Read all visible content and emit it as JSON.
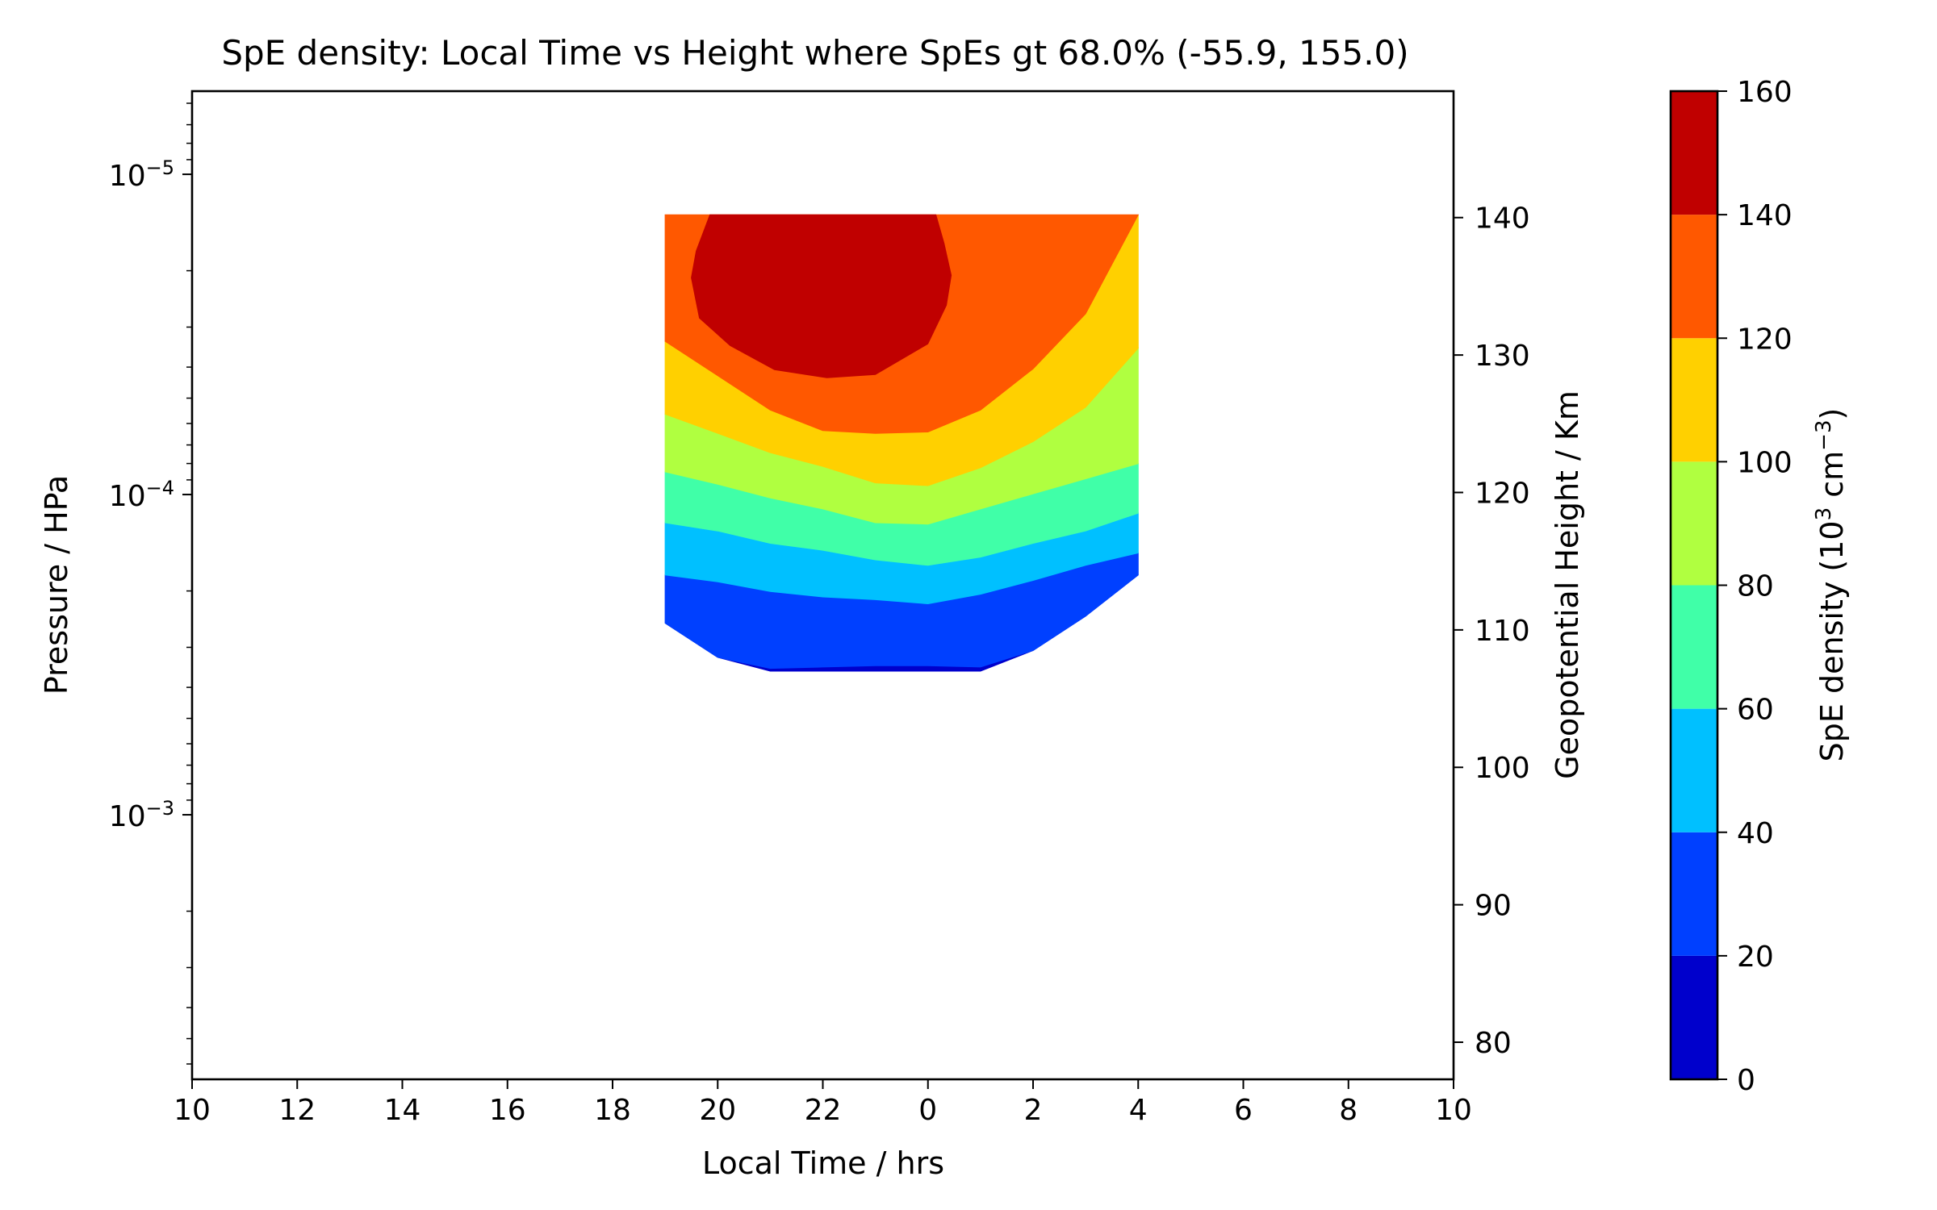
{
  "chart_data": {
    "type": "contourf",
    "title": "SpE density: Local Time vs Height where SpEs gt 68.0%  (-55.9, 155.0)",
    "xlabel": "Local Time / hrs",
    "ylabel_left": "Pressure / HPa",
    "ylabel_right": "Geopotential Height / Km",
    "x_ticks": [
      "10",
      "12",
      "14",
      "16",
      "18",
      "20",
      "22",
      "0",
      "2",
      "4",
      "6",
      "8",
      "10"
    ],
    "y_left_ticks": [
      {
        "base": "10",
        "exp": "−5",
        "value": 1e-05
      },
      {
        "base": "10",
        "exp": "−4",
        "value": 0.0001
      },
      {
        "base": "10",
        "exp": "−3",
        "value": 0.001
      }
    ],
    "y_left_scale": "log",
    "y_left_lim": [
      0.0067,
      5.5e-06
    ],
    "y_right_ticks": [
      80,
      90,
      100,
      110,
      120,
      130,
      140
    ],
    "y_right_lim": [
      77.3,
      149.2
    ],
    "colorbar": {
      "label_prefix": "SpE density (10",
      "label_exp1": "3",
      "label_mid": " cm",
      "label_exp2": "−3",
      "label_suffix": ")",
      "levels": [
        0,
        20,
        40,
        60,
        80,
        100,
        120,
        140,
        160
      ],
      "colors": [
        "#0000cc",
        "#0040ff",
        "#00c0ff",
        "#40ffa8",
        "#b0ff40",
        "#ffd000",
        "#ff5800",
        "#c00000"
      ]
    },
    "grid": false,
    "contour_bands": [
      {
        "range": [
          0,
          20
        ],
        "color": "#0000cc",
        "lt": [
          "19",
          "20",
          "21",
          "22",
          "23",
          "0",
          "1",
          "2",
          "3",
          "4"
        ],
        "lower_height_km": [
          110.5,
          108.0,
          107.0,
          107.0,
          107.0,
          107.0,
          107.0,
          108.5,
          111.0,
          114.0
        ],
        "upper_height_km": [
          110.5,
          108.0,
          107.2,
          107.3,
          107.4,
          107.4,
          107.3,
          108.5,
          111.0,
          114.0
        ]
      },
      {
        "range": [
          20,
          40
        ],
        "color": "#0040ff",
        "lt": [
          "19",
          "20",
          "21",
          "22",
          "23",
          "0",
          "1",
          "2",
          "3",
          "4"
        ],
        "lower_height_km": [
          110.5,
          108.0,
          107.2,
          107.3,
          107.4,
          107.4,
          107.3,
          108.5,
          111.0,
          114.0
        ],
        "upper_height_km": [
          114.0,
          113.5,
          112.8,
          112.4,
          112.2,
          111.9,
          112.6,
          113.6,
          114.7,
          115.6
        ]
      },
      {
        "range": [
          40,
          60
        ],
        "color": "#00c0ff",
        "lt": [
          "19",
          "20",
          "21",
          "22",
          "23",
          "0",
          "1",
          "2",
          "3",
          "4"
        ],
        "lower_height_km": [
          114.0,
          113.5,
          112.8,
          112.4,
          112.2,
          111.9,
          112.6,
          113.6,
          114.7,
          115.6
        ],
        "upper_height_km": [
          117.8,
          117.2,
          116.3,
          115.8,
          115.1,
          114.7,
          115.3,
          116.3,
          117.2,
          118.5
        ]
      },
      {
        "range": [
          60,
          80
        ],
        "color": "#40ffa8",
        "lt": [
          "19",
          "20",
          "21",
          "22",
          "23",
          "0",
          "1",
          "2",
          "3",
          "4"
        ],
        "lower_height_km": [
          117.8,
          117.2,
          116.3,
          115.8,
          115.1,
          114.7,
          115.3,
          116.3,
          117.2,
          118.5
        ],
        "upper_height_km": [
          121.5,
          120.6,
          119.6,
          118.8,
          117.8,
          117.7,
          118.8,
          119.9,
          121.0,
          122.1
        ]
      },
      {
        "range": [
          80,
          100
        ],
        "color": "#b0ff40",
        "lt": [
          "19",
          "20",
          "21",
          "22",
          "23",
          "0",
          "1",
          "2",
          "3",
          "4"
        ],
        "lower_height_km": [
          121.5,
          120.6,
          119.6,
          118.8,
          117.8,
          117.7,
          118.8,
          119.9,
          121.0,
          122.1
        ],
        "upper_height_km": [
          125.7,
          124.3,
          122.9,
          121.9,
          120.7,
          120.5,
          121.8,
          123.7,
          126.2,
          130.5
        ]
      },
      {
        "range": [
          100,
          120
        ],
        "color": "#ffd000",
        "lt": [
          "19",
          "20",
          "21",
          "22",
          "23",
          "0",
          "1",
          "2",
          "3",
          "4"
        ],
        "lower_height_km": [
          125.7,
          124.3,
          122.9,
          121.9,
          120.7,
          120.5,
          121.8,
          123.7,
          126.2,
          130.5
        ],
        "upper_height_km": [
          131.0,
          128.5,
          126.0,
          124.5,
          124.3,
          124.4,
          126.0,
          129.0,
          133.0,
          140.2
        ]
      },
      {
        "range": [
          120,
          140
        ],
        "color": "#ff5800",
        "lt": [
          "19",
          "20",
          "21",
          "22",
          "23",
          "0",
          "1",
          "2",
          "3",
          "4"
        ],
        "lower_height_km": [
          131.0,
          128.5,
          126.0,
          124.5,
          124.3,
          124.4,
          126.0,
          129.0,
          133.0,
          140.2
        ],
        "upper_height_km": [
          140.2,
          140.2,
          140.2,
          140.2,
          140.2,
          140.2,
          140.2,
          140.2,
          140.2,
          140.2
        ]
      },
      {
        "range": [
          140,
          160
        ],
        "color": "#c00000",
        "max_at_lt": "23",
        "max_height_km": 135.5
      }
    ]
  }
}
